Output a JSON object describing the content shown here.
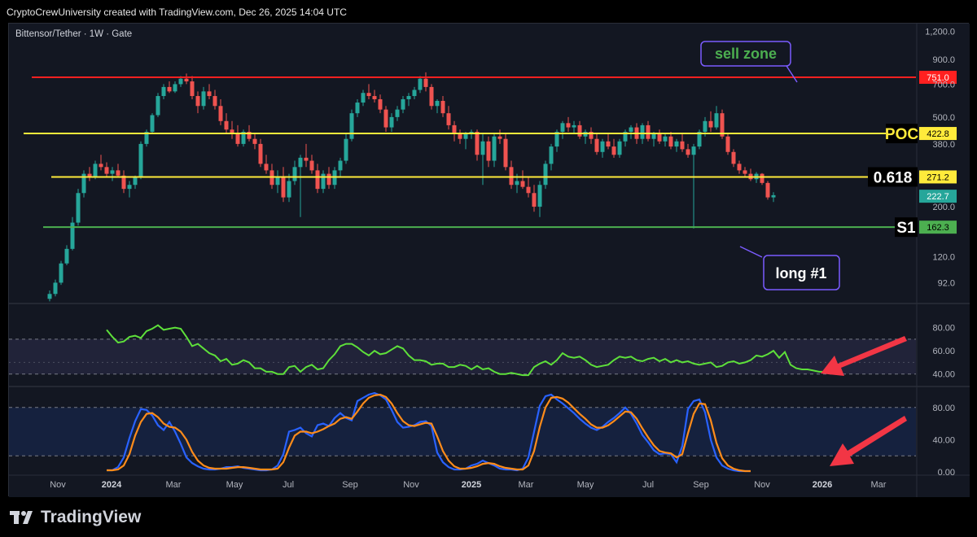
{
  "header": {
    "credit": "CryptoCrewUniversity created with TradingView.com, Dec 26, 2025 14:04 UTC"
  },
  "footer": {
    "brand": "TradingView"
  },
  "symbol_title": "Bittensor/Tether · 1W · Gate",
  "colors": {
    "background": "#131722",
    "bull": "#26a69a",
    "bear": "#ef5350",
    "resistance": "#ff2020",
    "poc": "#ffeb3b",
    "support": "#4caf50",
    "rsi": "#5ee03a",
    "stoch_k": "#2962ff",
    "stoch_d": "#ff8c1a",
    "arrow": "#f23645",
    "annotation_border": "#7b5cff"
  },
  "chart_data": [
    {
      "type": "candlestick",
      "log_scale": true,
      "ylim": [
        75,
        1300
      ],
      "y_ticks": [
        "1,200.0",
        "900.0",
        "700.0",
        "500.0",
        "380.0",
        "200.0",
        "120.0",
        "92.0"
      ],
      "x_ticks": [
        "Nov",
        "2024",
        "Mar",
        "May",
        "Jul",
        "Sep",
        "Nov",
        "2025",
        "Mar",
        "May",
        "Jul",
        "Sep",
        "Nov",
        "2026",
        "Mar"
      ],
      "levels": [
        {
          "name": "resistance",
          "value": 751.0,
          "label": "751.0",
          "tag": ""
        },
        {
          "name": "poc",
          "value": 422.8,
          "label": "422.8",
          "tag": "POC"
        },
        {
          "name": "fib",
          "value": 271.2,
          "label": "271.2",
          "tag": "0.618"
        },
        {
          "name": "s1",
          "value": 162.3,
          "label": "162.3",
          "tag": "S1"
        }
      ],
      "last_price": {
        "value": 222.7,
        "label": "222.7"
      },
      "annotations": [
        {
          "text": "sell zone",
          "color": "#4caf50"
        },
        {
          "text": "long #1",
          "color": "#ffffff"
        }
      ],
      "candles": [
        [
          78,
          85,
          76,
          82
        ],
        [
          82,
          95,
          80,
          92
        ],
        [
          92,
          115,
          90,
          112
        ],
        [
          112,
          135,
          110,
          130
        ],
        [
          130,
          180,
          128,
          170
        ],
        [
          170,
          240,
          165,
          230
        ],
        [
          230,
          290,
          220,
          280
        ],
        [
          280,
          300,
          260,
          270
        ],
        [
          270,
          320,
          265,
          310
        ],
        [
          310,
          340,
          290,
          300
        ],
        [
          300,
          315,
          270,
          280
        ],
        [
          280,
          300,
          260,
          290
        ],
        [
          290,
          310,
          270,
          275
        ],
        [
          275,
          290,
          230,
          240
        ],
        [
          240,
          260,
          220,
          250
        ],
        [
          250,
          275,
          240,
          270
        ],
        [
          270,
          390,
          265,
          380
        ],
        [
          380,
          440,
          370,
          430
        ],
        [
          430,
          520,
          420,
          510
        ],
        [
          510,
          640,
          500,
          620
        ],
        [
          620,
          700,
          600,
          680
        ],
        [
          680,
          720,
          640,
          650
        ],
        [
          650,
          720,
          640,
          700
        ],
        [
          700,
          760,
          680,
          740
        ],
        [
          740,
          780,
          700,
          720
        ],
        [
          720,
          760,
          600,
          620
        ],
        [
          620,
          650,
          520,
          560
        ],
        [
          560,
          680,
          540,
          650
        ],
        [
          650,
          700,
          600,
          620
        ],
        [
          620,
          660,
          540,
          560
        ],
        [
          560,
          600,
          460,
          480
        ],
        [
          480,
          520,
          420,
          440
        ],
        [
          440,
          480,
          400,
          420
        ],
        [
          420,
          460,
          370,
          380
        ],
        [
          380,
          440,
          370,
          430
        ],
        [
          430,
          460,
          390,
          400
        ],
        [
          400,
          420,
          360,
          380
        ],
        [
          380,
          400,
          300,
          310
        ],
        [
          310,
          340,
          280,
          290
        ],
        [
          290,
          310,
          240,
          250
        ],
        [
          250,
          290,
          230,
          270
        ],
        [
          270,
          300,
          210,
          220
        ],
        [
          220,
          280,
          210,
          260
        ],
        [
          260,
          320,
          250,
          300
        ],
        [
          300,
          340,
          180,
          330
        ],
        [
          330,
          380,
          300,
          320
        ],
        [
          320,
          340,
          280,
          290
        ],
        [
          290,
          310,
          230,
          240
        ],
        [
          240,
          290,
          230,
          280
        ],
        [
          280,
          300,
          240,
          250
        ],
        [
          250,
          300,
          240,
          290
        ],
        [
          290,
          330,
          270,
          320
        ],
        [
          320,
          420,
          310,
          400
        ],
        [
          400,
          540,
          390,
          520
        ],
        [
          520,
          600,
          500,
          580
        ],
        [
          580,
          660,
          560,
          640
        ],
        [
          640,
          700,
          600,
          620
        ],
        [
          620,
          660,
          580,
          600
        ],
        [
          600,
          630,
          520,
          540
        ],
        [
          540,
          560,
          430,
          450
        ],
        [
          450,
          520,
          430,
          500
        ],
        [
          500,
          560,
          480,
          540
        ],
        [
          540,
          620,
          520,
          600
        ],
        [
          600,
          640,
          560,
          620
        ],
        [
          620,
          680,
          600,
          660
        ],
        [
          660,
          760,
          640,
          740
        ],
        [
          740,
          790,
          650,
          680
        ],
        [
          680,
          700,
          540,
          560
        ],
        [
          560,
          600,
          520,
          590
        ],
        [
          590,
          620,
          500,
          520
        ],
        [
          520,
          560,
          440,
          460
        ],
        [
          460,
          480,
          390,
          420
        ],
        [
          420,
          440,
          380,
          400
        ],
        [
          400,
          430,
          360,
          420
        ],
        [
          420,
          440,
          400,
          430
        ],
        [
          430,
          440,
          320,
          340
        ],
        [
          340,
          420,
          250,
          390
        ],
        [
          390,
          410,
          300,
          320
        ],
        [
          320,
          420,
          300,
          410
        ],
        [
          410,
          440,
          380,
          400
        ],
        [
          400,
          420,
          290,
          300
        ],
        [
          300,
          320,
          240,
          250
        ],
        [
          250,
          280,
          230,
          260
        ],
        [
          260,
          290,
          240,
          245
        ],
        [
          245,
          270,
          220,
          230
        ],
        [
          230,
          250,
          190,
          200
        ],
        [
          200,
          260,
          180,
          250
        ],
        [
          250,
          320,
          240,
          310
        ],
        [
          310,
          380,
          290,
          370
        ],
        [
          370,
          440,
          350,
          430
        ],
        [
          430,
          480,
          400,
          470
        ],
        [
          470,
          500,
          430,
          450
        ],
        [
          450,
          480,
          420,
          460
        ],
        [
          460,
          480,
          400,
          410
        ],
        [
          410,
          440,
          380,
          430
        ],
        [
          430,
          450,
          380,
          400
        ],
        [
          400,
          420,
          340,
          350
        ],
        [
          350,
          400,
          330,
          390
        ],
        [
          390,
          420,
          360,
          370
        ],
        [
          370,
          400,
          330,
          340
        ],
        [
          340,
          400,
          330,
          390
        ],
        [
          390,
          440,
          370,
          430
        ],
        [
          430,
          460,
          400,
          450
        ],
        [
          450,
          470,
          380,
          400
        ],
        [
          400,
          470,
          380,
          460
        ],
        [
          460,
          480,
          390,
          400
        ],
        [
          400,
          430,
          370,
          420
        ],
        [
          420,
          440,
          380,
          390
        ],
        [
          390,
          420,
          370,
          410
        ],
        [
          410,
          430,
          360,
          370
        ],
        [
          370,
          400,
          350,
          390
        ],
        [
          390,
          420,
          350,
          360
        ],
        [
          360,
          380,
          330,
          340
        ],
        [
          340,
          380,
          160,
          370
        ],
        [
          370,
          440,
          360,
          430
        ],
        [
          430,
          500,
          410,
          480
        ],
        [
          480,
          530,
          430,
          450
        ],
        [
          450,
          560,
          440,
          520
        ],
        [
          520,
          540,
          400,
          410
        ],
        [
          410,
          420,
          340,
          350
        ],
        [
          350,
          360,
          300,
          310
        ],
        [
          310,
          320,
          280,
          290
        ],
        [
          290,
          300,
          270,
          280
        ],
        [
          280,
          295,
          260,
          265
        ],
        [
          265,
          285,
          255,
          280
        ],
        [
          280,
          282,
          250,
          255
        ],
        [
          255,
          260,
          215,
          220
        ],
        [
          220,
          232,
          210,
          225
        ]
      ]
    },
    {
      "type": "line",
      "name": "",
      "ylim": [
        30,
        100
      ],
      "y_ticks": [
        "80.00",
        "60.00",
        "40.00"
      ],
      "band": [
        40,
        70
      ],
      "values": [
        78,
        72,
        67,
        68,
        72,
        73,
        71,
        77,
        79,
        82,
        78,
        79,
        80,
        79,
        72,
        64,
        66,
        62,
        58,
        56,
        51,
        53,
        48,
        49,
        52,
        50,
        45,
        45,
        42,
        42,
        40,
        40,
        46,
        47,
        42,
        46,
        48,
        44,
        45,
        52,
        57,
        64,
        66,
        66,
        63,
        59,
        56,
        60,
        57,
        58,
        61,
        64,
        62,
        56,
        52,
        52,
        51,
        48,
        49,
        49,
        46,
        46,
        48,
        47,
        44,
        47,
        44,
        45,
        42,
        40,
        40,
        41,
        40,
        39,
        39,
        46,
        49,
        51,
        48,
        52,
        58,
        55,
        54,
        55,
        52,
        48,
        46,
        47,
        48,
        52,
        55,
        54,
        55,
        52,
        51,
        53,
        54,
        51,
        53,
        50,
        52,
        50,
        51,
        49,
        48,
        49,
        50,
        46,
        47,
        50,
        51,
        49,
        50,
        52,
        56,
        55,
        57,
        60,
        54,
        59,
        48,
        45,
        44,
        44,
        43,
        42,
        42,
        42,
        40,
        41
      ],
      "start_index": 10
    },
    {
      "type": "line",
      "ylim": [
        0,
        100
      ],
      "y_ticks": [
        "80.00",
        "40.00",
        "0.00"
      ],
      "band": [
        20,
        80
      ],
      "series": [
        {
          "name": "",
          "values": [
            2,
            2,
            6,
            18,
            42,
            63,
            78,
            77,
            70,
            58,
            52,
            62,
            50,
            35,
            18,
            11,
            7,
            4,
            3,
            3,
            4,
            6,
            6,
            7,
            5,
            4,
            3,
            2,
            2,
            3,
            8,
            22,
            50,
            52,
            55,
            48,
            44,
            58,
            60,
            57,
            67,
            73,
            67,
            64,
            88,
            92,
            96,
            98,
            95,
            90,
            77,
            62,
            55,
            56,
            58,
            62,
            63,
            57,
            24,
            12,
            6,
            3,
            3,
            4,
            8,
            10,
            14,
            11,
            8,
            4,
            3,
            3,
            2,
            4,
            18,
            50,
            82,
            94,
            96,
            90,
            85,
            79,
            73,
            66,
            60,
            55,
            52,
            56,
            62,
            67,
            73,
            80,
            72,
            60,
            46,
            37,
            27,
            22,
            23,
            22,
            12,
            32,
            78,
            88,
            90,
            74,
            40,
            18,
            8,
            4,
            2,
            1,
            1,
            1
          ]
        },
        {
          "name": "",
          "values": [
            2,
            2,
            3,
            8,
            22,
            45,
            62,
            72,
            73,
            68,
            60,
            56,
            55,
            50,
            40,
            25,
            14,
            8,
            5,
            4,
            4,
            4,
            5,
            6,
            6,
            5,
            4,
            3,
            3,
            3,
            4,
            12,
            30,
            45,
            50,
            50,
            48,
            50,
            53,
            57,
            60,
            66,
            68,
            66,
            75,
            85,
            92,
            95,
            96,
            93,
            85,
            73,
            63,
            58,
            57,
            59,
            61,
            60,
            44,
            26,
            14,
            7,
            4,
            4,
            5,
            7,
            10,
            11,
            10,
            7,
            5,
            4,
            3,
            3,
            8,
            26,
            56,
            80,
            92,
            93,
            91,
            86,
            79,
            72,
            66,
            59,
            55,
            55,
            58,
            63,
            69,
            75,
            74,
            66,
            54,
            43,
            33,
            26,
            24,
            23,
            18,
            22,
            48,
            72,
            85,
            84,
            64,
            36,
            17,
            8,
            4,
            2,
            1,
            1
          ]
        }
      ],
      "start_index": 10
    }
  ]
}
